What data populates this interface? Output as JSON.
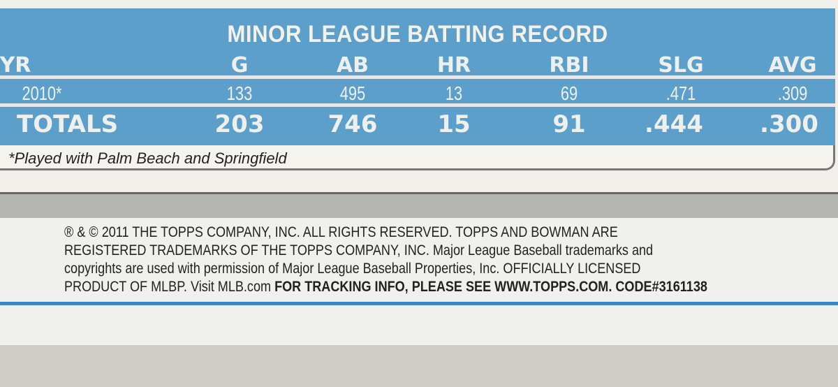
{
  "title": "MINOR LEAGUE BATTING RECORD",
  "headers": [
    "YR",
    "G",
    "AB",
    "HR",
    "RBI",
    "SLG",
    "AVG"
  ],
  "rows": [
    [
      "2010*",
      "133",
      "495",
      "13",
      "69",
      ".471",
      ".309"
    ]
  ],
  "totals": [
    "TOTALS",
    "203",
    "746",
    "15",
    "91",
    ".444",
    ".300"
  ],
  "footnote": "*Played with Palm Beach and Springfield",
  "legal": {
    "line1": "® & © 2011 THE TOPPS COMPANY, INC. ALL RIGHTS RESERVED. TOPPS AND BOWMAN ARE",
    "line2": "REGISTERED TRADEMARKS OF THE TOPPS COMPANY, INC. Major League Baseball trademarks and",
    "line3": "copyrights are used with permission of Major League Baseball Properties, Inc. OFFICIALLY LICENSED",
    "line4a": "PRODUCT OF MLBP. Visit MLB.com ",
    "line4b": "FOR TRACKING INFO, PLEASE SEE WWW.TOPPS.COM. CODE#3161138"
  },
  "colors": {
    "panel": "#5b9fca",
    "rule": "#3a86c4"
  }
}
